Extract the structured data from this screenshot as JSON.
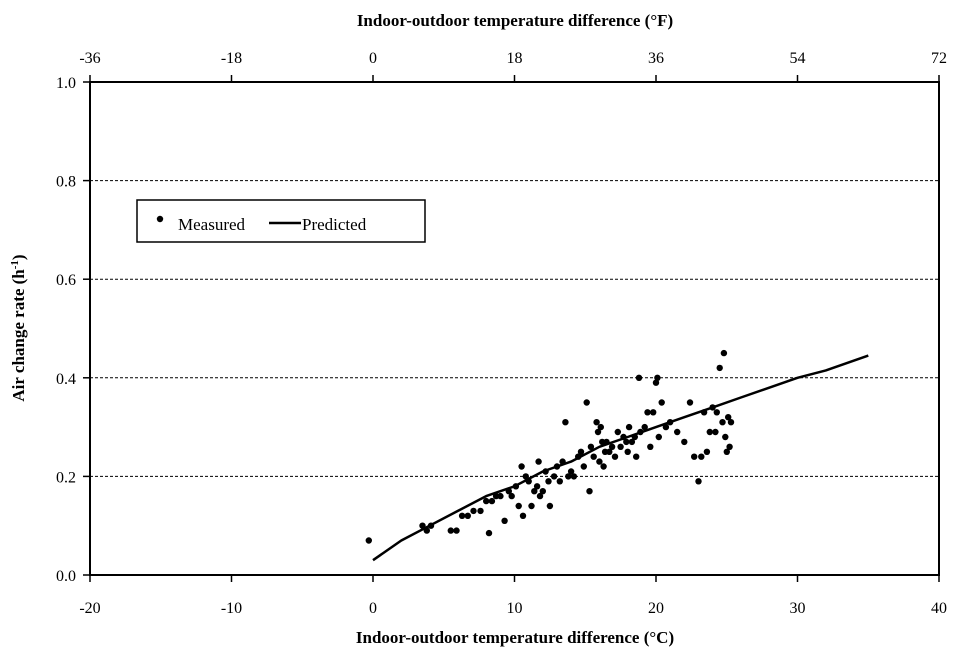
{
  "chart_data": {
    "type": "scatter",
    "xlabel": "Indoor-outdoor temperature difference (°C)",
    "x2label": "Indoor-outdoor temperature difference (°F)",
    "ylabel": "Air change rate (h",
    "ylabel_sup": "-1",
    "ylabel_close": ")",
    "xlim": [
      -20,
      40
    ],
    "ylim": [
      0.0,
      1.0
    ],
    "x2lim": [
      -36,
      72
    ],
    "xticks": [
      "-20",
      "-10",
      "0",
      "10",
      "20",
      "30",
      "40"
    ],
    "x2ticks": [
      "-36",
      "-18",
      "0",
      "18",
      "36",
      "54",
      "72"
    ],
    "yticks": [
      "0.0",
      "0.2",
      "0.4",
      "0.6",
      "0.8",
      "1.0"
    ],
    "grid": "horizontal dashed",
    "legend_position": "upper-left",
    "legend": {
      "measured": "Measured",
      "predicted": "Predicted"
    },
    "series": [
      {
        "name": "Measured",
        "type": "scatter",
        "points": [
          [
            -0.3,
            0.07
          ],
          [
            3.5,
            0.1
          ],
          [
            3.8,
            0.09
          ],
          [
            4.1,
            0.1
          ],
          [
            5.5,
            0.09
          ],
          [
            5.9,
            0.09
          ],
          [
            6.3,
            0.12
          ],
          [
            6.7,
            0.12
          ],
          [
            7.1,
            0.13
          ],
          [
            7.6,
            0.13
          ],
          [
            8.0,
            0.15
          ],
          [
            8.2,
            0.085
          ],
          [
            8.4,
            0.15
          ],
          [
            8.7,
            0.16
          ],
          [
            9.0,
            0.16
          ],
          [
            9.3,
            0.11
          ],
          [
            9.6,
            0.17
          ],
          [
            9.8,
            0.16
          ],
          [
            10.1,
            0.18
          ],
          [
            10.3,
            0.14
          ],
          [
            10.5,
            0.22
          ],
          [
            10.6,
            0.12
          ],
          [
            10.8,
            0.2
          ],
          [
            11.0,
            0.19
          ],
          [
            11.2,
            0.14
          ],
          [
            11.4,
            0.17
          ],
          [
            11.6,
            0.18
          ],
          [
            11.7,
            0.23
          ],
          [
            11.8,
            0.16
          ],
          [
            12.0,
            0.17
          ],
          [
            12.2,
            0.21
          ],
          [
            12.4,
            0.19
          ],
          [
            12.5,
            0.14
          ],
          [
            12.8,
            0.2
          ],
          [
            13.0,
            0.22
          ],
          [
            13.2,
            0.19
          ],
          [
            13.4,
            0.23
          ],
          [
            13.6,
            0.31
          ],
          [
            13.8,
            0.2
          ],
          [
            14.0,
            0.21
          ],
          [
            14.2,
            0.2
          ],
          [
            14.5,
            0.24
          ],
          [
            14.7,
            0.25
          ],
          [
            14.9,
            0.22
          ],
          [
            15.1,
            0.35
          ],
          [
            15.3,
            0.17
          ],
          [
            15.4,
            0.26
          ],
          [
            15.6,
            0.24
          ],
          [
            15.8,
            0.31
          ],
          [
            15.9,
            0.29
          ],
          [
            16.0,
            0.23
          ],
          [
            16.1,
            0.3
          ],
          [
            16.2,
            0.27
          ],
          [
            16.3,
            0.22
          ],
          [
            16.4,
            0.25
          ],
          [
            16.5,
            0.27
          ],
          [
            16.7,
            0.25
          ],
          [
            16.9,
            0.26
          ],
          [
            17.1,
            0.24
          ],
          [
            17.3,
            0.29
          ],
          [
            17.5,
            0.26
          ],
          [
            17.7,
            0.28
          ],
          [
            17.9,
            0.27
          ],
          [
            18.0,
            0.25
          ],
          [
            18.1,
            0.3
          ],
          [
            18.3,
            0.27
          ],
          [
            18.5,
            0.28
          ],
          [
            18.6,
            0.24
          ],
          [
            18.8,
            0.4
          ],
          [
            18.9,
            0.29
          ],
          [
            19.2,
            0.3
          ],
          [
            19.4,
            0.33
          ],
          [
            19.6,
            0.26
          ],
          [
            19.8,
            0.33
          ],
          [
            20.0,
            0.39
          ],
          [
            20.1,
            0.4
          ],
          [
            20.2,
            0.28
          ],
          [
            20.4,
            0.35
          ],
          [
            20.7,
            0.3
          ],
          [
            21.0,
            0.31
          ],
          [
            21.5,
            0.29
          ],
          [
            22.0,
            0.27
          ],
          [
            22.4,
            0.35
          ],
          [
            22.7,
            0.24
          ],
          [
            23.0,
            0.19
          ],
          [
            23.2,
            0.24
          ],
          [
            23.4,
            0.33
          ],
          [
            23.6,
            0.25
          ],
          [
            23.8,
            0.29
          ],
          [
            24.0,
            0.34
          ],
          [
            24.2,
            0.29
          ],
          [
            24.3,
            0.33
          ],
          [
            24.5,
            0.42
          ],
          [
            24.7,
            0.31
          ],
          [
            24.8,
            0.45
          ],
          [
            24.9,
            0.28
          ],
          [
            25.0,
            0.25
          ],
          [
            25.1,
            0.32
          ],
          [
            25.2,
            0.26
          ],
          [
            25.3,
            0.31
          ]
        ]
      },
      {
        "name": "Predicted",
        "type": "line",
        "points": [
          [
            0,
            0.03
          ],
          [
            2,
            0.07
          ],
          [
            4,
            0.1
          ],
          [
            6,
            0.13
          ],
          [
            8,
            0.16
          ],
          [
            10,
            0.18
          ],
          [
            12,
            0.21
          ],
          [
            14,
            0.23
          ],
          [
            16,
            0.26
          ],
          [
            18,
            0.28
          ],
          [
            20,
            0.3
          ],
          [
            22,
            0.32
          ],
          [
            24,
            0.34
          ],
          [
            26,
            0.36
          ],
          [
            28,
            0.38
          ],
          [
            30,
            0.4
          ],
          [
            32,
            0.415
          ],
          [
            35,
            0.445
          ]
        ]
      }
    ]
  }
}
